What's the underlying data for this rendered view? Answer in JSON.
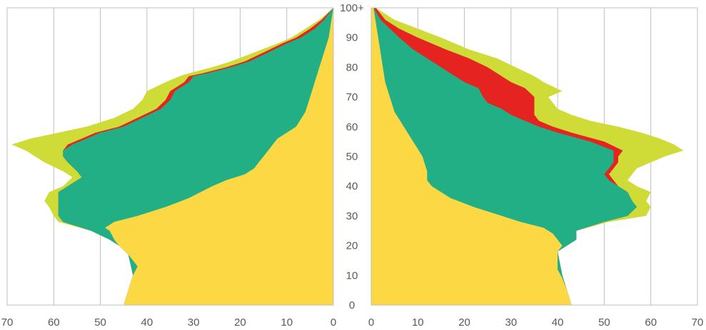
{
  "chart_data": {
    "type": "area",
    "layout": "population-pyramid",
    "x_axis_tick_labels_left": [
      "70",
      "60",
      "50",
      "40",
      "30",
      "20",
      "10",
      "0"
    ],
    "x_axis_tick_labels_right": [
      "0",
      "10",
      "20",
      "30",
      "40",
      "50",
      "60",
      "70"
    ],
    "xlim": [
      0,
      70
    ],
    "age_tick_labels": [
      "0",
      "10",
      "20",
      "30",
      "40",
      "50",
      "60",
      "70",
      "80",
      "90",
      "100+"
    ],
    "ylim": [
      0,
      100
    ],
    "grid": "vertical",
    "legend": "none",
    "stack_order": [
      "yellow",
      "green",
      "red",
      "lime"
    ],
    "series": [
      {
        "color": "#FDD845",
        "left": [
          [
            0,
            45
          ],
          [
            5,
            44
          ],
          [
            10,
            43
          ],
          [
            13,
            42
          ],
          [
            17,
            44
          ],
          [
            20,
            46
          ],
          [
            22,
            47
          ],
          [
            25,
            48
          ],
          [
            26,
            49
          ],
          [
            28,
            47
          ],
          [
            30,
            42
          ],
          [
            33,
            36
          ],
          [
            36,
            31
          ],
          [
            40,
            26
          ],
          [
            42,
            23
          ],
          [
            44,
            19
          ],
          [
            46,
            17
          ],
          [
            48,
            16
          ],
          [
            50,
            15
          ],
          [
            52,
            14
          ],
          [
            54,
            13
          ],
          [
            56,
            12
          ],
          [
            58,
            10
          ],
          [
            60,
            8
          ],
          [
            65,
            6
          ],
          [
            70,
            5
          ],
          [
            75,
            4
          ],
          [
            80,
            3
          ],
          [
            85,
            2
          ],
          [
            90,
            1
          ],
          [
            95,
            0.5
          ],
          [
            100,
            0
          ]
        ],
        "right": [
          [
            0,
            43
          ],
          [
            5,
            42
          ],
          [
            9,
            41
          ],
          [
            12,
            40
          ],
          [
            18,
            40
          ],
          [
            20,
            41
          ],
          [
            22,
            40
          ],
          [
            24,
            39
          ],
          [
            26,
            37
          ],
          [
            28,
            32
          ],
          [
            30,
            28
          ],
          [
            33,
            22
          ],
          [
            36,
            17
          ],
          [
            40,
            13
          ],
          [
            42,
            12
          ],
          [
            45,
            12
          ],
          [
            50,
            11
          ],
          [
            55,
            9
          ],
          [
            60,
            7
          ],
          [
            65,
            5
          ],
          [
            70,
            4
          ],
          [
            75,
            3
          ],
          [
            80,
            2.5
          ],
          [
            85,
            2
          ],
          [
            90,
            1.5
          ],
          [
            95,
            1
          ],
          [
            100,
            0.5
          ]
        ]
      },
      {
        "color": "#22AF86",
        "left": [
          [
            0,
            45
          ],
          [
            10,
            43
          ],
          [
            17,
            44
          ],
          [
            20,
            46
          ],
          [
            22,
            48
          ],
          [
            25,
            52
          ],
          [
            28,
            58
          ],
          [
            30,
            59
          ],
          [
            33,
            59
          ],
          [
            35,
            59
          ],
          [
            38,
            59
          ],
          [
            40,
            57
          ],
          [
            43,
            54
          ],
          [
            45,
            55
          ],
          [
            48,
            57
          ],
          [
            50,
            58
          ],
          [
            52,
            58
          ],
          [
            54,
            56
          ],
          [
            56,
            53
          ],
          [
            58,
            50
          ],
          [
            60,
            45
          ],
          [
            63,
            41
          ],
          [
            66,
            37
          ],
          [
            69,
            35
          ],
          [
            72,
            34
          ],
          [
            75,
            31
          ],
          [
            77,
            30
          ],
          [
            78,
            27
          ],
          [
            80,
            22
          ],
          [
            82,
            18
          ],
          [
            85,
            14
          ],
          [
            88,
            10
          ],
          [
            90,
            7
          ],
          [
            93,
            4
          ],
          [
            96,
            2
          ],
          [
            100,
            0
          ]
        ],
        "right": [
          [
            0,
            43
          ],
          [
            10,
            41
          ],
          [
            18,
            40
          ],
          [
            20,
            42
          ],
          [
            22,
            44
          ],
          [
            25,
            44
          ],
          [
            28,
            50
          ],
          [
            30,
            55
          ],
          [
            33,
            57
          ],
          [
            35,
            56
          ],
          [
            38,
            55
          ],
          [
            40,
            53
          ],
          [
            42,
            51
          ],
          [
            44,
            50
          ],
          [
            46,
            51
          ],
          [
            48,
            52
          ],
          [
            50,
            52
          ],
          [
            52,
            52
          ],
          [
            55,
            47
          ],
          [
            58,
            40
          ],
          [
            60,
            36
          ],
          [
            62,
            33
          ],
          [
            64,
            30
          ],
          [
            66,
            28
          ],
          [
            68,
            25
          ],
          [
            70,
            24
          ],
          [
            73,
            23
          ],
          [
            75,
            20
          ],
          [
            77,
            18
          ],
          [
            80,
            15
          ],
          [
            83,
            12
          ],
          [
            86,
            9
          ],
          [
            90,
            6
          ],
          [
            93,
            4
          ],
          [
            96,
            2
          ],
          [
            100,
            0.5
          ]
        ]
      },
      {
        "color": "#E52421",
        "left": [
          [
            0,
            45
          ],
          [
            10,
            43
          ],
          [
            17,
            44
          ],
          [
            20,
            46
          ],
          [
            22,
            48
          ],
          [
            25,
            52
          ],
          [
            28,
            58
          ],
          [
            30,
            59
          ],
          [
            33,
            59
          ],
          [
            35,
            59
          ],
          [
            38,
            59
          ],
          [
            40,
            57
          ],
          [
            43,
            54
          ],
          [
            45,
            55
          ],
          [
            48,
            57
          ],
          [
            50,
            58
          ],
          [
            52,
            58
          ],
          [
            54,
            57
          ],
          [
            56,
            54
          ],
          [
            58,
            51
          ],
          [
            60,
            46
          ],
          [
            63,
            42
          ],
          [
            66,
            38
          ],
          [
            69,
            36
          ],
          [
            72,
            35
          ],
          [
            75,
            32
          ],
          [
            77,
            31
          ],
          [
            78,
            28
          ],
          [
            80,
            23
          ],
          [
            82,
            19
          ],
          [
            85,
            15
          ],
          [
            88,
            11
          ],
          [
            90,
            8
          ],
          [
            93,
            5
          ],
          [
            96,
            2.5
          ],
          [
            100,
            0
          ]
        ],
        "right": [
          [
            0,
            43
          ],
          [
            10,
            41
          ],
          [
            18,
            40
          ],
          [
            20,
            42
          ],
          [
            22,
            44
          ],
          [
            25,
            44
          ],
          [
            28,
            50
          ],
          [
            30,
            55
          ],
          [
            33,
            57
          ],
          [
            35,
            56
          ],
          [
            38,
            55
          ],
          [
            40,
            53
          ],
          [
            42,
            52
          ],
          [
            44,
            51
          ],
          [
            46,
            52
          ],
          [
            48,
            53
          ],
          [
            50,
            53
          ],
          [
            52,
            54
          ],
          [
            55,
            50
          ],
          [
            58,
            43
          ],
          [
            60,
            39
          ],
          [
            62,
            36
          ],
          [
            64,
            35
          ],
          [
            66,
            35
          ],
          [
            68,
            35
          ],
          [
            70,
            35
          ],
          [
            73,
            33
          ],
          [
            75,
            30
          ],
          [
            77,
            28
          ],
          [
            80,
            25
          ],
          [
            83,
            21
          ],
          [
            86,
            16
          ],
          [
            90,
            10
          ],
          [
            93,
            6
          ],
          [
            96,
            3
          ],
          [
            100,
            1
          ]
        ]
      },
      {
        "color": "#CFDB36",
        "left": [
          [
            0,
            45
          ],
          [
            10,
            43
          ],
          [
            17,
            44
          ],
          [
            20,
            46
          ],
          [
            22,
            48
          ],
          [
            25,
            52
          ],
          [
            28,
            59
          ],
          [
            30,
            60
          ],
          [
            33,
            61
          ],
          [
            35,
            62
          ],
          [
            38,
            61
          ],
          [
            40,
            58
          ],
          [
            43,
            56
          ],
          [
            45,
            58
          ],
          [
            48,
            62
          ],
          [
            50,
            64
          ],
          [
            52,
            66
          ],
          [
            54,
            69
          ],
          [
            56,
            65
          ],
          [
            58,
            59
          ],
          [
            60,
            53
          ],
          [
            63,
            47
          ],
          [
            66,
            43
          ],
          [
            69,
            41
          ],
          [
            72,
            40
          ],
          [
            75,
            36
          ],
          [
            77,
            33
          ],
          [
            78,
            31
          ],
          [
            80,
            26
          ],
          [
            82,
            22
          ],
          [
            85,
            17
          ],
          [
            88,
            12
          ],
          [
            90,
            9
          ],
          [
            93,
            6
          ],
          [
            96,
            3
          ],
          [
            100,
            0
          ]
        ],
        "right": [
          [
            0,
            43
          ],
          [
            10,
            41
          ],
          [
            18,
            40
          ],
          [
            20,
            42
          ],
          [
            22,
            44
          ],
          [
            25,
            44
          ],
          [
            28,
            51
          ],
          [
            30,
            59
          ],
          [
            33,
            60
          ],
          [
            35,
            59
          ],
          [
            38,
            60
          ],
          [
            40,
            57
          ],
          [
            42,
            55
          ],
          [
            44,
            56
          ],
          [
            46,
            57
          ],
          [
            48,
            60
          ],
          [
            50,
            63
          ],
          [
            52,
            67
          ],
          [
            54,
            65
          ],
          [
            56,
            62
          ],
          [
            58,
            58
          ],
          [
            60,
            53
          ],
          [
            62,
            47
          ],
          [
            64,
            43
          ],
          [
            66,
            40
          ],
          [
            68,
            39
          ],
          [
            70,
            38
          ],
          [
            72,
            41
          ],
          [
            75,
            37
          ],
          [
            77,
            35
          ],
          [
            80,
            31
          ],
          [
            83,
            27
          ],
          [
            86,
            21
          ],
          [
            90,
            15
          ],
          [
            93,
            10
          ],
          [
            96,
            5
          ],
          [
            100,
            1
          ]
        ]
      }
    ]
  }
}
